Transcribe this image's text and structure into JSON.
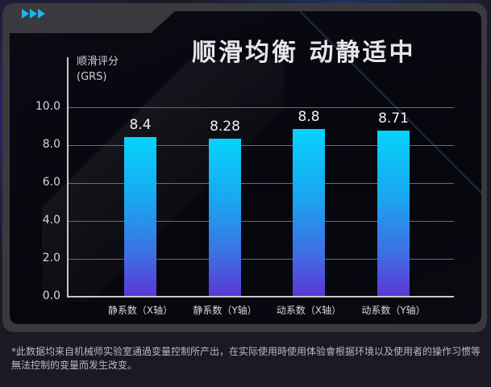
{
  "header": {
    "title": "顺滑均衡 动静适中",
    "icon": "triple-chevron-right-icon"
  },
  "chart_data": {
    "type": "bar",
    "title": "顺滑均衡 动静适中",
    "xlabel": "",
    "ylabel": "顺滑评分 (GRS)",
    "ylabel_lines": [
      "顺滑评分",
      "(GRS)"
    ],
    "categories": [
      "静系数（X轴）",
      "静系数（Y轴）",
      "动系数（X轴）",
      "动系数（Y轴）"
    ],
    "values": [
      8.4,
      8.28,
      8.8,
      8.71
    ],
    "value_labels": [
      "8.4",
      "8.28",
      "8.8",
      "8.71"
    ],
    "ylim": [
      0,
      10
    ],
    "yticks": [
      "10.0",
      "8.0",
      "6.0",
      "4.0",
      "2.0",
      "0.0"
    ],
    "grid": true,
    "legend": null,
    "bar_gradient": [
      "#06d3fb",
      "#5b36d6"
    ]
  },
  "footnote": "*此数据均来自机械师实验室通過变量控制所产出，在实际使用時使用体验會根据环境以及使用者的操作习惯等無法控制的变量而发生改变。"
}
